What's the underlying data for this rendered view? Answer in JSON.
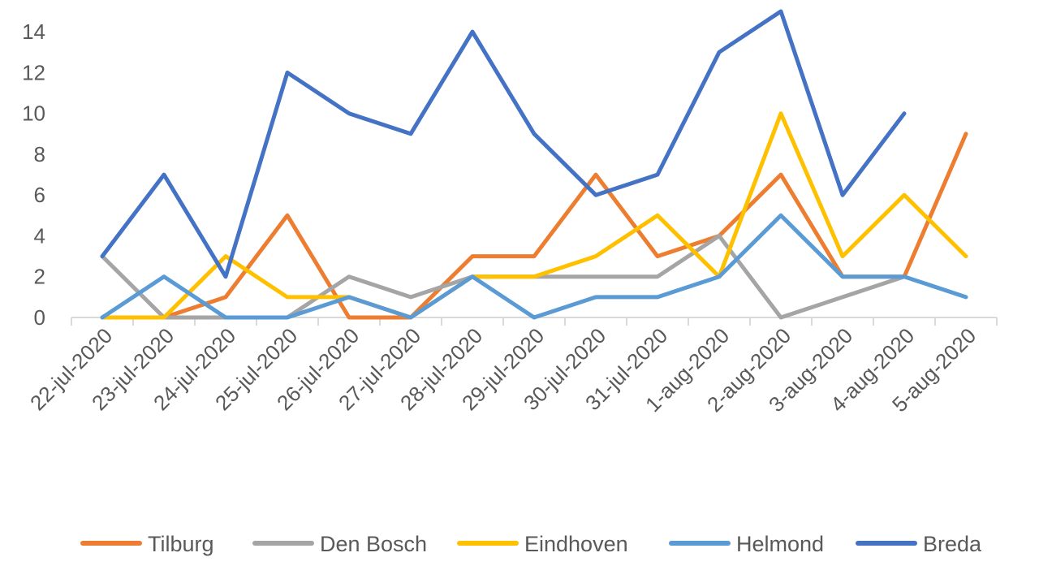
{
  "chart_data": {
    "type": "line",
    "title": "",
    "xlabel": "",
    "ylabel": "",
    "ylim": [
      0,
      15
    ],
    "yticks": [
      0,
      2,
      4,
      6,
      8,
      10,
      12,
      14
    ],
    "grid": false,
    "legend_position": "bottom",
    "categories": [
      "22-jul-2020",
      "23-jul-2020",
      "24-jul-2020",
      "25-jul-2020",
      "26-jul-2020",
      "27-jul-2020",
      "28-jul-2020",
      "29-jul-2020",
      "30-jul-2020",
      "31-jul-2020",
      "1-aug-2020",
      "2-aug-2020",
      "3-aug-2020",
      "4-aug-2020",
      "5-aug-2020"
    ],
    "series": [
      {
        "name": "Tilburg",
        "color": "#ED7D31",
        "values": [
          null,
          0,
          1,
          5,
          0,
          0,
          3,
          3,
          7,
          3,
          4,
          7,
          2,
          2,
          9
        ]
      },
      {
        "name": "Den Bosch",
        "color": "#A5A5A5",
        "values": [
          3,
          0,
          0,
          0,
          2,
          1,
          2,
          2,
          2,
          2,
          4,
          0,
          1,
          2,
          null
        ]
      },
      {
        "name": "Eindhoven",
        "color": "#FFC000",
        "values": [
          0,
          0,
          3,
          1,
          1,
          0,
          2,
          2,
          3,
          5,
          2,
          10,
          3,
          6,
          3
        ]
      },
      {
        "name": "Helmond",
        "color": "#5B9BD5",
        "values": [
          0,
          2,
          0,
          0,
          1,
          0,
          2,
          0,
          1,
          1,
          2,
          5,
          2,
          2,
          1
        ]
      },
      {
        "name": "Breda",
        "color": "#4472C4",
        "values": [
          3,
          7,
          2,
          12,
          10,
          9,
          14,
          9,
          6,
          7,
          13,
          15,
          6,
          10,
          null
        ]
      }
    ]
  }
}
